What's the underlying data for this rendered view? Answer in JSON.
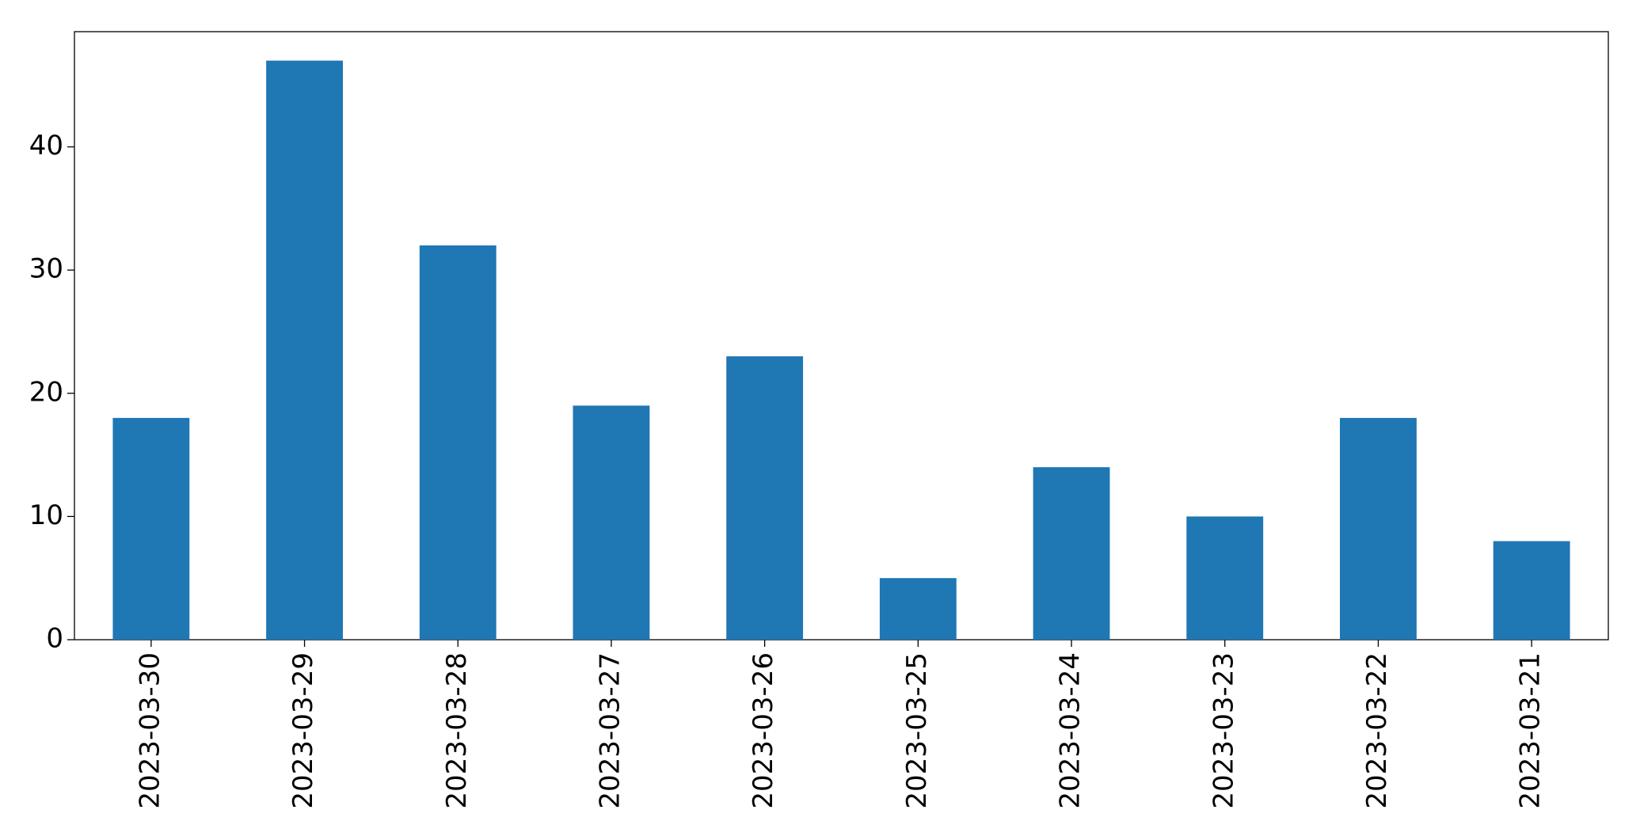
{
  "chart_data": {
    "type": "bar",
    "categories": [
      "2023-03-30",
      "2023-03-29",
      "2023-03-28",
      "2023-03-27",
      "2023-03-26",
      "2023-03-25",
      "2023-03-24",
      "2023-03-23",
      "2023-03-22",
      "2023-03-21"
    ],
    "values": [
      18,
      47,
      32,
      19,
      23,
      5,
      14,
      10,
      18,
      8
    ],
    "color": "#1f77b4",
    "ylim": [
      0,
      49.35
    ],
    "yticks": [
      0,
      10,
      20,
      30,
      40
    ],
    "grid": false
  }
}
